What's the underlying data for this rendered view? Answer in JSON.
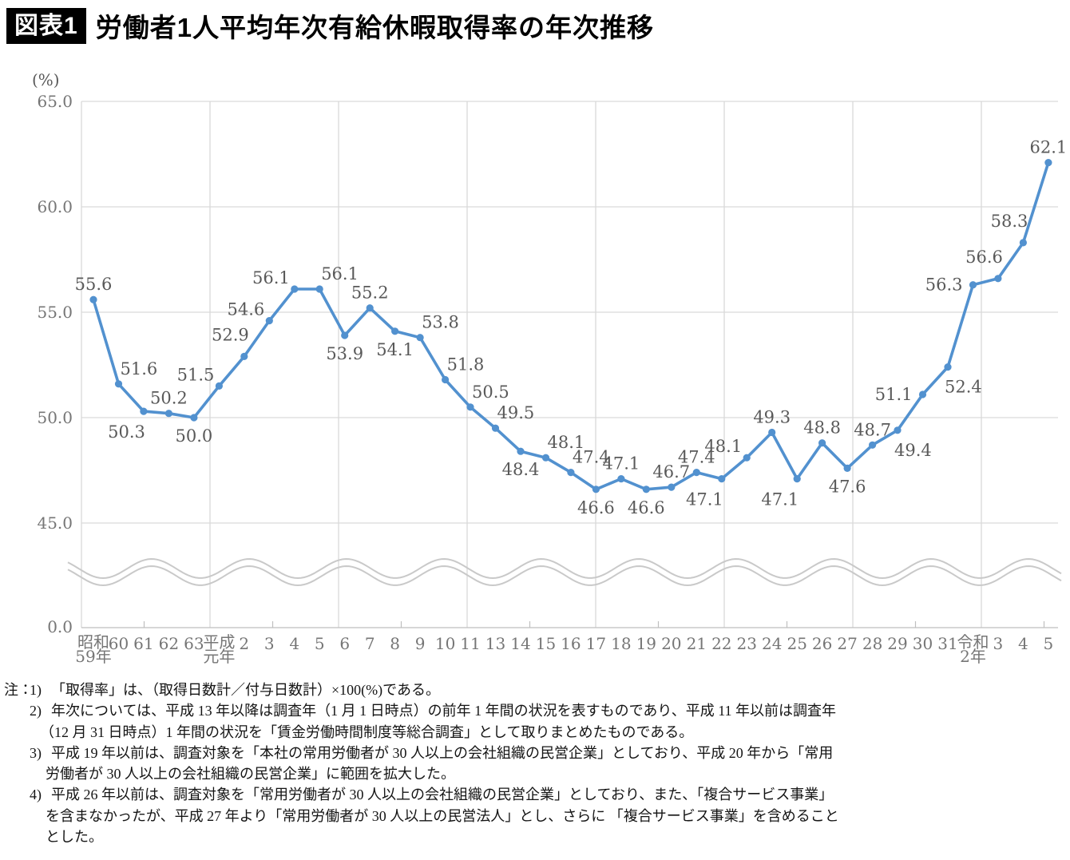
{
  "header": {
    "badge": "図表1",
    "title": "労働者1人平均年次有給休暇取得率の年次推移"
  },
  "chart_data": {
    "type": "line",
    "title": "労働者1人平均年次有給休暇取得率の年次推移",
    "unit_label": "(%)",
    "grid": true,
    "legend": "none",
    "axis_break": true,
    "ylim_shown": [
      45.0,
      65.0
    ],
    "y_ticks": [
      65.0,
      60.0,
      55.0,
      50.0,
      45.0
    ],
    "y_base_label": "0.0",
    "series_color": "#5291CF",
    "grid_color": "#D9D9D9",
    "axis_color": "#BFBFBF",
    "categories": [
      "昭和|59年",
      "60",
      "61",
      "62",
      "63",
      "平成|元年",
      "2",
      "3",
      "4",
      "5",
      "6",
      "7",
      "8",
      "9",
      "10",
      "11",
      "13",
      "14",
      "15",
      "16",
      "17",
      "18",
      "19",
      "20",
      "21",
      "22",
      "23",
      "24",
      "25",
      "26",
      "27",
      "28",
      "29",
      "30",
      "31",
      "令和|2年",
      "3",
      "4",
      "5"
    ],
    "values": [
      55.6,
      51.6,
      50.3,
      50.2,
      50.0,
      51.5,
      52.9,
      54.6,
      56.1,
      56.1,
      53.9,
      55.2,
      54.1,
      53.8,
      51.8,
      50.5,
      49.5,
      48.4,
      48.1,
      47.4,
      46.6,
      47.1,
      46.6,
      46.7,
      47.4,
      47.1,
      48.1,
      49.3,
      47.1,
      48.8,
      47.6,
      48.7,
      49.4,
      51.1,
      52.4,
      56.3,
      56.6,
      58.3,
      62.1
    ],
    "label_pos": [
      "a",
      "ar",
      "bl",
      "a",
      "b",
      "la",
      "al",
      "la",
      "la",
      "ar",
      "b",
      "a",
      "b",
      "ar",
      "ar",
      "ar",
      "ar",
      "b",
      "ar",
      "ar",
      "b",
      "a",
      "b",
      "a",
      "a",
      "bl",
      "la",
      "a",
      "bl",
      "a",
      "b",
      "a",
      "br",
      "l",
      "br",
      "l",
      "al",
      "al",
      "a"
    ]
  },
  "notes": {
    "lines": [
      {
        "prefix": "注：",
        "num": "1)",
        "text": "「取得率」は、（取得日数計／付与日数計）×100(%)である。"
      },
      {
        "num": "2)",
        "text": "年次については、平成 13 年以降は調査年（1 月 1 日時点）の前年 1 年間の状況を表すものであり、平成 11 年以前は調査年"
      },
      {
        "text": "（12 月 31 日時点）1 年間の状況を「賃金労働時間制度等総合調査」として取りまとめたものである。"
      },
      {
        "num": "3)",
        "text": "平成 19 年以前は、調査対象を「本社の常用労働者が 30 人以上の会社組織の民営企業」としており、平成 20 年から「常用"
      },
      {
        "text": "労働者が 30 人以上の会社組織の民営企業」に範囲を拡大した。"
      },
      {
        "num": "4)",
        "text": "平成 26 年以前は、調査対象を「常用労働者が 30 人以上の会社組織の民営企業」としており、また、「複合サービス事業」"
      },
      {
        "text": "を含まなかったが、平成 27 年より「常用労働者が 30 人以上の民営法人」とし、さらに 「複合サービス事業」を含めること"
      },
      {
        "text": "とした。"
      }
    ]
  }
}
